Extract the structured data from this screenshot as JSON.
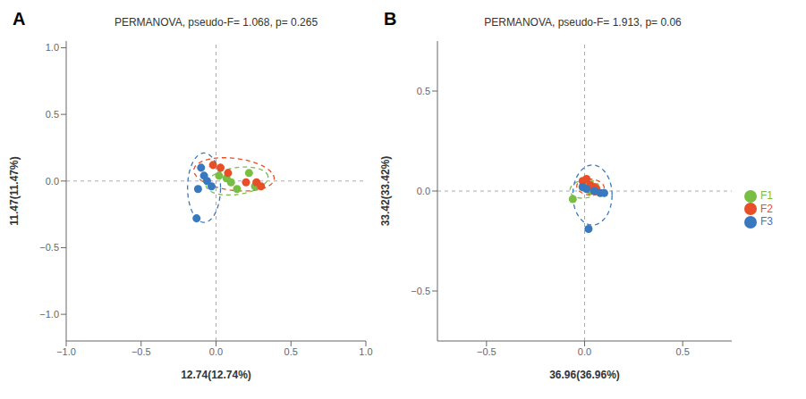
{
  "chart_data": [
    {
      "type": "scatter",
      "panel_label": "A",
      "title": "PERMANOVA, pseudo-F= 1.068, p= 0.265",
      "x_label": "12.74(12.74%)",
      "y_label": "11.47(11.47%)",
      "xlim": [
        -1.0,
        1.0
      ],
      "ylim": [
        -1.2,
        1.05
      ],
      "xticks": [
        {
          "value": -1.0,
          "label": "−1.0"
        },
        {
          "value": -0.5,
          "label": "−0.5"
        },
        {
          "value": 0.0,
          "label": "0.0"
        },
        0.5,
        {
          "value": 1.0,
          "label": "1.0"
        }
      ],
      "yticks": [
        {
          "value": -1.0,
          "label": "−1.0"
        },
        {
          "value": -0.5,
          "label": "−0.5"
        },
        {
          "value": 0.0,
          "label": "0.0"
        },
        0.5,
        {
          "value": 1.0,
          "label": "1.0"
        }
      ],
      "reference_lines": {
        "x": 0,
        "y": 0
      },
      "series": [
        {
          "name": "F1",
          "color": "#78be43",
          "x": [
            0.02,
            0.07,
            0.1,
            0.14,
            0.22,
            0.26
          ],
          "y": [
            0.04,
            0.02,
            -0.01,
            -0.06,
            0.06,
            -0.04
          ],
          "ellipse": {
            "cx": 0.14,
            "cy": 0.0,
            "width": 0.42,
            "height": 0.2,
            "angle": 10
          }
        },
        {
          "name": "F2",
          "color": "#e84e28",
          "x": [
            -0.02,
            0.03,
            0.08,
            0.2,
            0.27,
            0.3
          ],
          "y": [
            0.12,
            0.1,
            0.06,
            -0.01,
            -0.01,
            -0.04
          ],
          "ellipse": {
            "cx": 0.12,
            "cy": 0.05,
            "width": 0.54,
            "height": 0.24,
            "angle": -8
          }
        },
        {
          "name": "F3",
          "color": "#3878bf",
          "x": [
            -0.1,
            -0.08,
            -0.06,
            -0.03,
            -0.12,
            -0.13
          ],
          "y": [
            0.1,
            0.04,
            0.0,
            -0.04,
            -0.06,
            -0.28
          ],
          "ellipse": {
            "cx": -0.08,
            "cy": -0.05,
            "width": 0.22,
            "height": 0.52,
            "angle": 0
          }
        }
      ]
    },
    {
      "type": "scatter",
      "panel_label": "B",
      "title": "PERMANOVA, pseudo-F= 1.913, p= 0.06",
      "x_label": "36.96(36.96%)",
      "y_label": "33.42(33.42%)",
      "xlim": [
        -0.75,
        0.75
      ],
      "ylim": [
        -0.75,
        0.75
      ],
      "xticks": [
        {
          "value": -0.5,
          "label": "−0.5"
        },
        {
          "value": 0.0,
          "label": "0.0"
        },
        0.5
      ],
      "yticks": [
        {
          "value": -0.5,
          "label": "−0.5"
        },
        {
          "value": 0.0,
          "label": "0.0"
        },
        0.5
      ],
      "reference_lines": {
        "x": 0,
        "y": 0
      },
      "legend": "right",
      "series": [
        {
          "name": "F1",
          "color": "#78be43",
          "x": [
            -0.06,
            -0.01,
            0.01,
            0.02,
            0.02,
            0.03
          ],
          "y": [
            -0.04,
            0.02,
            0.03,
            0.02,
            0.01,
            0.0
          ],
          "ellipse": {
            "cx": 0.0,
            "cy": 0.01,
            "width": 0.15,
            "height": 0.09,
            "angle": 8
          }
        },
        {
          "name": "F2",
          "color": "#e84e28",
          "x": [
            -0.01,
            0.01,
            0.03,
            0.05,
            0.06,
            0.05
          ],
          "y": [
            0.05,
            0.06,
            0.03,
            0.02,
            0.01,
            0.0
          ],
          "ellipse": {
            "cx": 0.03,
            "cy": 0.02,
            "width": 0.14,
            "height": 0.08,
            "angle": -5
          }
        },
        {
          "name": "F3",
          "color": "#3878bf",
          "x": [
            -0.01,
            0.01,
            0.05,
            0.08,
            0.1,
            0.02
          ],
          "y": [
            0.02,
            0.01,
            0.0,
            -0.01,
            -0.01,
            -0.19
          ],
          "ellipse": {
            "cx": 0.04,
            "cy": -0.02,
            "width": 0.2,
            "height": 0.3,
            "angle": 0
          }
        }
      ]
    }
  ]
}
